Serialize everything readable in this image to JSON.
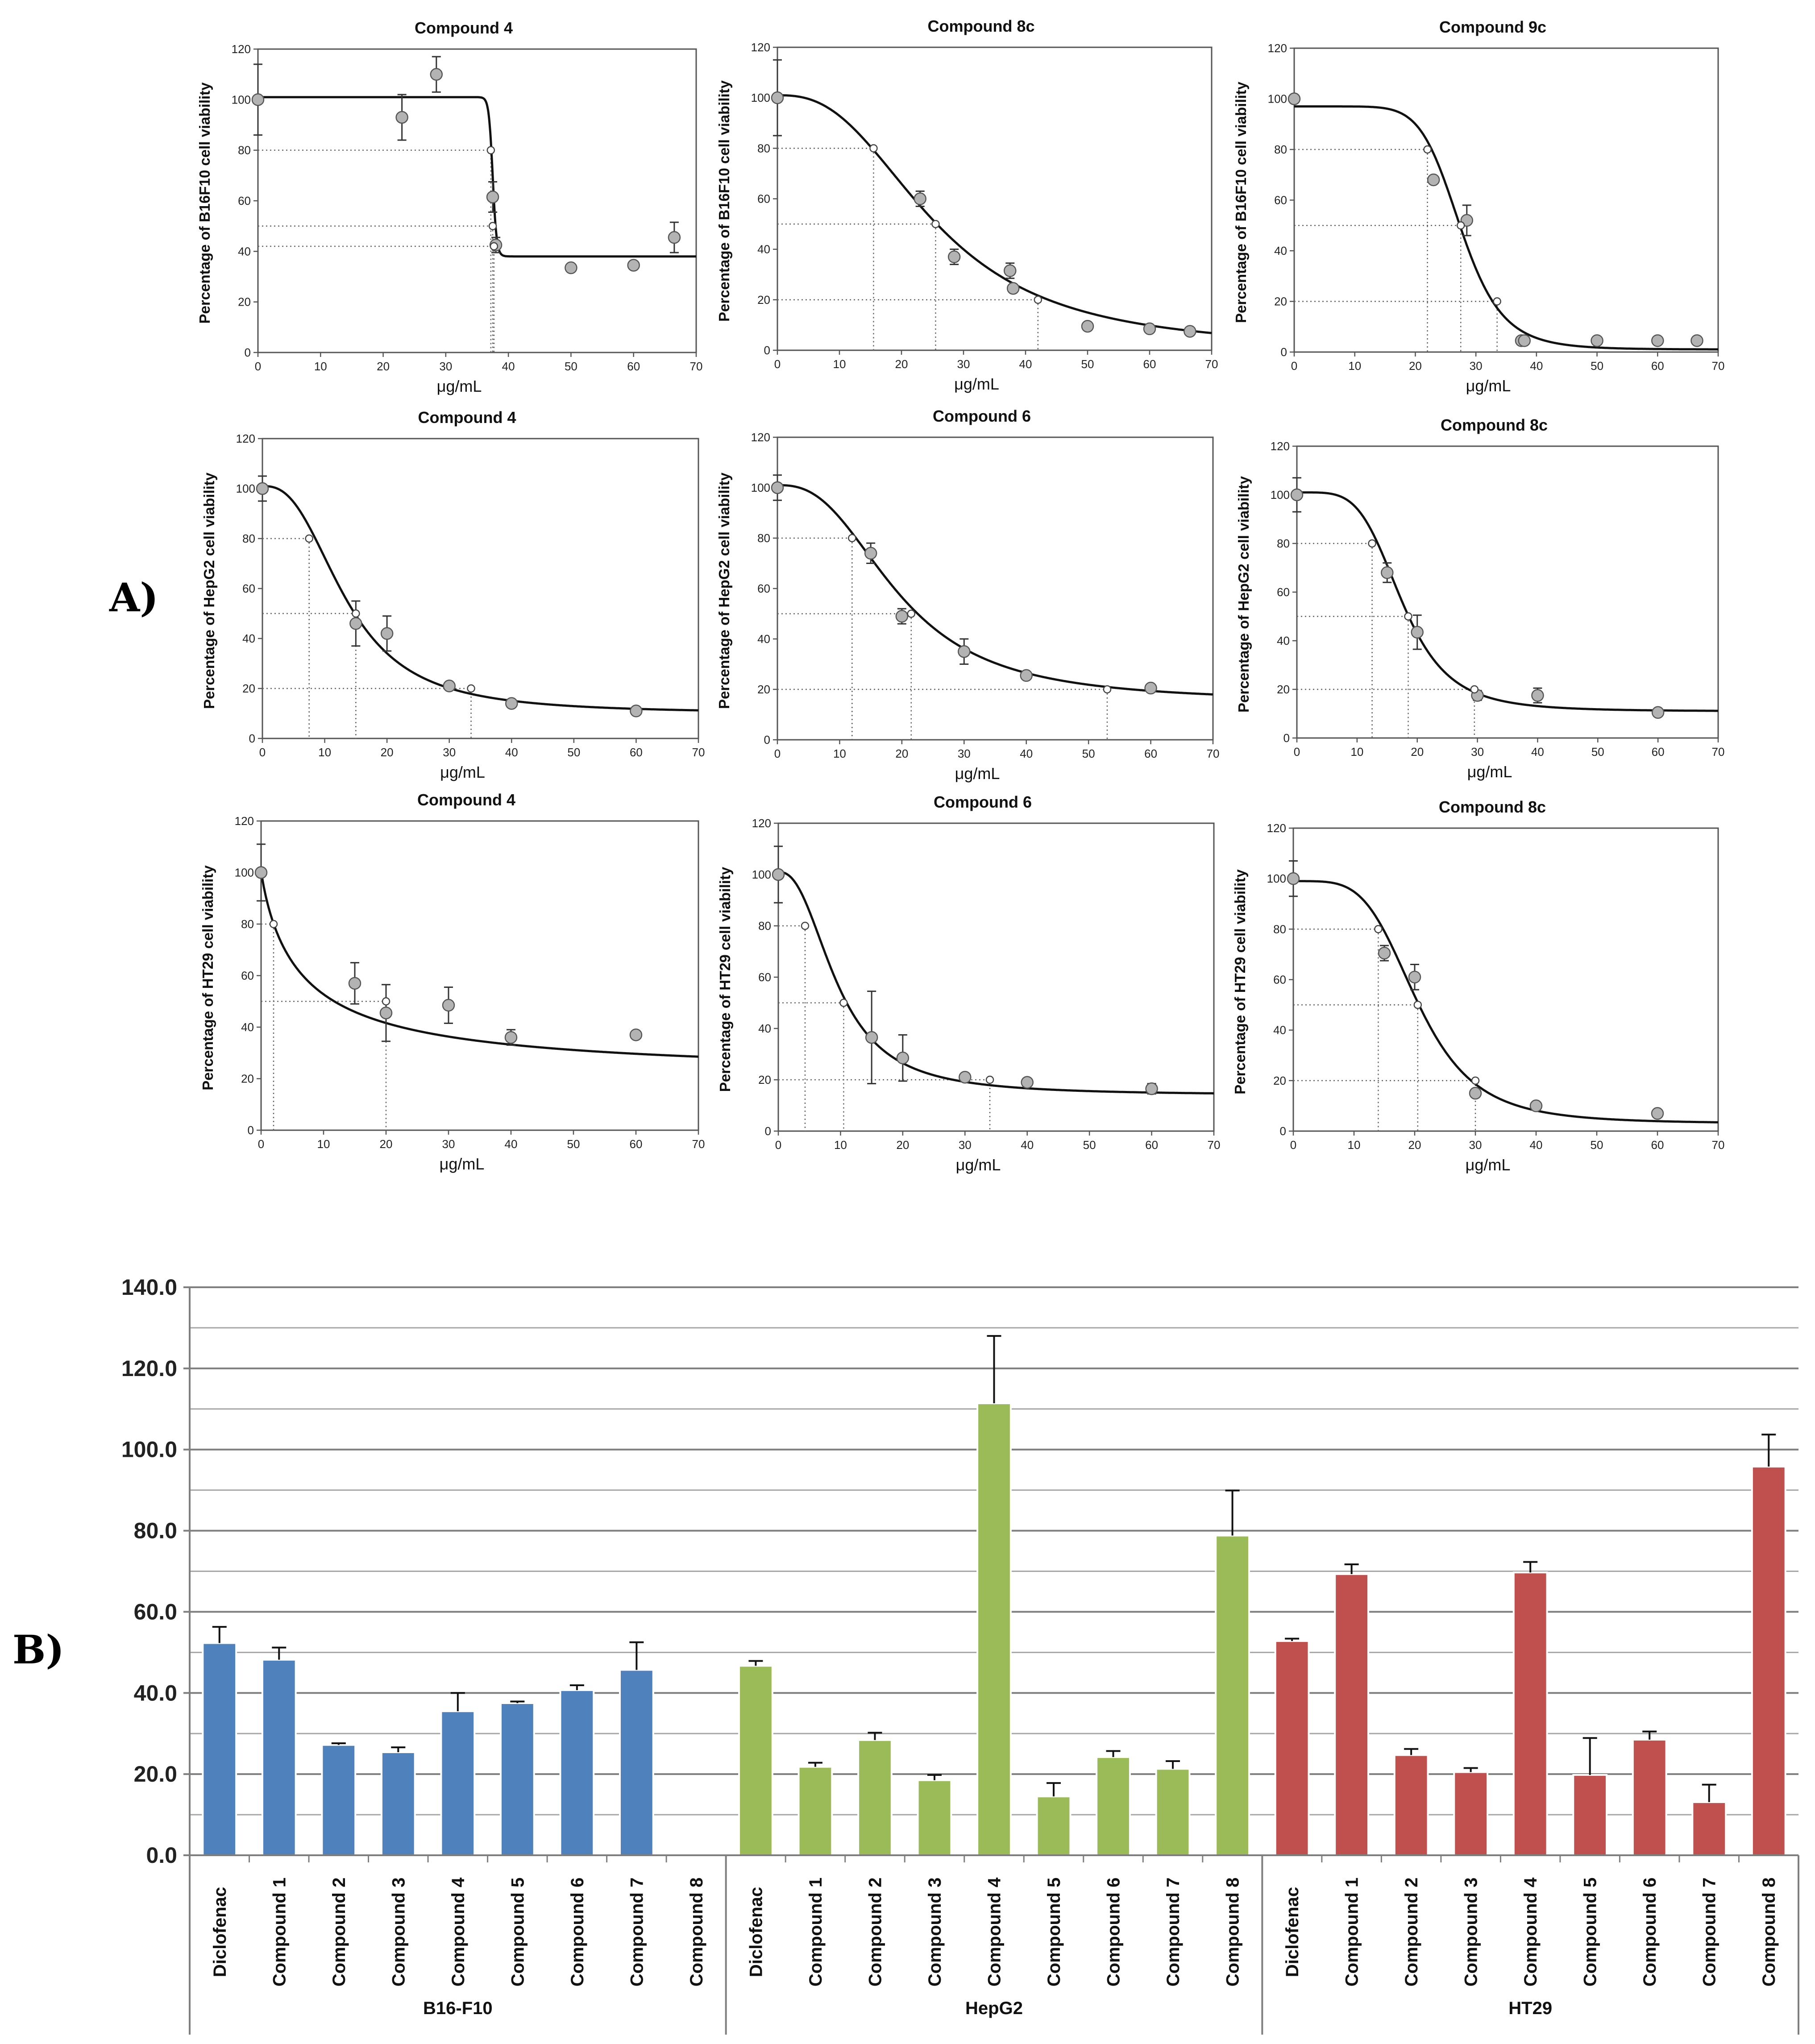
{
  "panels": {
    "a_label": "A)",
    "b_label": "B)"
  },
  "chart_data": [
    {
      "type": "scatter",
      "title": "Compound 4",
      "xlabel": "μg/mL",
      "ylabel": "Percentage of B16F10 cell viability",
      "xlim": [
        0,
        70
      ],
      "ylim": [
        0,
        120
      ],
      "xticks": [
        0,
        10,
        20,
        30,
        40,
        50,
        60,
        70
      ],
      "yticks": [
        0,
        20,
        40,
        60,
        80,
        100,
        120
      ],
      "points": [
        {
          "x": 0,
          "y": 100,
          "err": 14
        },
        {
          "x": 23,
          "y": 93,
          "err": 9
        },
        {
          "x": 28.5,
          "y": 110,
          "err": 7
        },
        {
          "x": 37.5,
          "y": 61.5,
          "err": 6
        },
        {
          "x": 38,
          "y": 42.5,
          "err": 3
        },
        {
          "x": 50,
          "y": 33.5,
          "err": 0
        },
        {
          "x": 60,
          "y": 34.5,
          "err": 0
        },
        {
          "x": 66.5,
          "y": 45.5,
          "err": 6
        }
      ],
      "fit": {
        "model": "logistic",
        "bottom": 38,
        "top": 101,
        "ec50": 37.5,
        "hill": 120
      },
      "markers": [
        {
          "x": 37.2,
          "y": 80
        },
        {
          "x": 37.5,
          "y": 50
        },
        {
          "x": 37.7,
          "y": 42
        }
      ]
    },
    {
      "type": "scatter",
      "title": "Compound 8c",
      "xlabel": "μg/mL",
      "ylabel": "Percentage of B16F10 cell viability",
      "xlim": [
        0,
        70
      ],
      "ylim": [
        0,
        120
      ],
      "xticks": [
        0,
        10,
        20,
        30,
        40,
        50,
        60,
        70
      ],
      "yticks": [
        0,
        20,
        40,
        60,
        80,
        100,
        120
      ],
      "points": [
        {
          "x": 0,
          "y": 100,
          "err": 15
        },
        {
          "x": 23,
          "y": 60,
          "err": 3
        },
        {
          "x": 28.5,
          "y": 37,
          "err": 3
        },
        {
          "x": 37.5,
          "y": 31.5,
          "err": 3
        },
        {
          "x": 38,
          "y": 24.5,
          "err": 0
        },
        {
          "x": 50,
          "y": 9.5,
          "err": 0
        },
        {
          "x": 60,
          "y": 8.5,
          "err": 0
        },
        {
          "x": 66.5,
          "y": 7.5,
          "err": 0
        }
      ],
      "fit": {
        "model": "logistic",
        "bottom": 0,
        "top": 101,
        "ec50": 25.5,
        "hill": 2.6
      },
      "markers": [
        {
          "x": 15.5,
          "y": 80
        },
        {
          "x": 25.5,
          "y": 50
        },
        {
          "x": 42,
          "y": 20
        }
      ]
    },
    {
      "type": "scatter",
      "title": "Compound 9c",
      "xlabel": "μg/mL",
      "ylabel": "Percentage of B16F10 cell viability",
      "xlim": [
        0,
        70
      ],
      "ylim": [
        0,
        120
      ],
      "xticks": [
        0,
        10,
        20,
        30,
        40,
        50,
        60,
        70
      ],
      "yticks": [
        0,
        20,
        40,
        60,
        80,
        100,
        120
      ],
      "points": [
        {
          "x": 0,
          "y": 100,
          "err": 0
        },
        {
          "x": 23,
          "y": 68,
          "err": 0
        },
        {
          "x": 28.5,
          "y": 52,
          "err": 6
        },
        {
          "x": 37.5,
          "y": 4.5,
          "err": 0
        },
        {
          "x": 38,
          "y": 4.5,
          "err": 0
        },
        {
          "x": 50,
          "y": 4.5,
          "err": 0
        },
        {
          "x": 60,
          "y": 4.5,
          "err": 0
        },
        {
          "x": 66.5,
          "y": 4.5,
          "err": 0
        }
      ],
      "fit": {
        "model": "logistic",
        "bottom": 1,
        "top": 97,
        "ec50": 27.5,
        "hill": 8
      },
      "markers": [
        {
          "x": 22,
          "y": 80
        },
        {
          "x": 27.5,
          "y": 50
        },
        {
          "x": 33.5,
          "y": 20
        }
      ]
    },
    {
      "type": "scatter",
      "title": "Compound 4",
      "xlabel": "μg/mL",
      "ylabel": "Percentage of HepG2 cell viability",
      "xlim": [
        0,
        70
      ],
      "ylim": [
        0,
        120
      ],
      "xticks": [
        0,
        10,
        20,
        30,
        40,
        50,
        60,
        70
      ],
      "yticks": [
        0,
        20,
        40,
        60,
        80,
        100,
        120
      ],
      "points": [
        {
          "x": 0,
          "y": 100,
          "err": 5
        },
        {
          "x": 15,
          "y": 46,
          "err": 9
        },
        {
          "x": 20,
          "y": 42,
          "err": 7
        },
        {
          "x": 30,
          "y": 21,
          "err": 0
        },
        {
          "x": 40,
          "y": 14,
          "err": 0
        },
        {
          "x": 60,
          "y": 11,
          "err": 0
        }
      ],
      "fit": {
        "model": "logistic",
        "bottom": 10,
        "top": 101,
        "ec50": 13.5,
        "hill": 2.6
      },
      "markers": [
        {
          "x": 7.5,
          "y": 80
        },
        {
          "x": 15,
          "y": 50
        },
        {
          "x": 33.5,
          "y": 20
        }
      ]
    },
    {
      "type": "scatter",
      "title": "Compound 6",
      "xlabel": "μg/mL",
      "ylabel": "Percentage of HepG2 cell viability",
      "xlim": [
        0,
        70
      ],
      "ylim": [
        0,
        120
      ],
      "xticks": [
        0,
        10,
        20,
        30,
        40,
        50,
        60,
        70
      ],
      "yticks": [
        0,
        20,
        40,
        60,
        80,
        100,
        120
      ],
      "points": [
        {
          "x": 0,
          "y": 100,
          "err": 5
        },
        {
          "x": 15,
          "y": 74,
          "err": 4
        },
        {
          "x": 20,
          "y": 49,
          "err": 3
        },
        {
          "x": 30,
          "y": 35,
          "err": 5
        },
        {
          "x": 40,
          "y": 25.5,
          "err": 0
        },
        {
          "x": 60,
          "y": 20.5,
          "err": 0
        }
      ],
      "fit": {
        "model": "logistic",
        "bottom": 15,
        "top": 101,
        "ec50": 19.5,
        "hill": 2.6
      },
      "markers": [
        {
          "x": 12,
          "y": 80
        },
        {
          "x": 21.5,
          "y": 50
        },
        {
          "x": 53,
          "y": 20
        }
      ]
    },
    {
      "type": "scatter",
      "title": "Compound 8c",
      "xlabel": "μg/mL",
      "ylabel": "Percentage of HepG2 cell viability",
      "xlim": [
        0,
        70
      ],
      "ylim": [
        0,
        120
      ],
      "xticks": [
        0,
        10,
        20,
        30,
        40,
        50,
        60,
        70
      ],
      "yticks": [
        0,
        20,
        40,
        60,
        80,
        100,
        120
      ],
      "points": [
        {
          "x": 0,
          "y": 100,
          "err": 7
        },
        {
          "x": 15,
          "y": 68,
          "err": 4
        },
        {
          "x": 20,
          "y": 43.5,
          "err": 7
        },
        {
          "x": 30,
          "y": 17.5,
          "err": 2
        },
        {
          "x": 40,
          "y": 17.5,
          "err": 3
        },
        {
          "x": 60,
          "y": 10.5,
          "err": 0
        }
      ],
      "fit": {
        "model": "logistic",
        "bottom": 11,
        "top": 101,
        "ec50": 17.5,
        "hill": 4.5
      },
      "markers": [
        {
          "x": 12.5,
          "y": 80
        },
        {
          "x": 18.5,
          "y": 50
        },
        {
          "x": 29.5,
          "y": 20
        }
      ]
    },
    {
      "type": "scatter",
      "title": "Compound 4",
      "xlabel": "μg/mL",
      "ylabel": "Percentage of HT29 cell viability",
      "xlim": [
        0,
        70
      ],
      "ylim": [
        0,
        120
      ],
      "xticks": [
        0,
        10,
        20,
        30,
        40,
        50,
        60,
        70
      ],
      "yticks": [
        0,
        20,
        40,
        60,
        80,
        100,
        120
      ],
      "points": [
        {
          "x": 0,
          "y": 100,
          "err": 11
        },
        {
          "x": 15,
          "y": 57,
          "err": 8
        },
        {
          "x": 20,
          "y": 45.5,
          "err": 11
        },
        {
          "x": 30,
          "y": 48.5,
          "err": 7
        },
        {
          "x": 40,
          "y": 36,
          "err": 3
        },
        {
          "x": 60,
          "y": 37,
          "err": 0
        }
      ],
      "fit": {
        "model": "logistic",
        "bottom": 20,
        "top": 101,
        "ec50": 6.5,
        "hill": 0.9
      },
      "markers": [
        {
          "x": 2,
          "y": 80
        },
        {
          "x": 20,
          "y": 50
        }
      ]
    },
    {
      "type": "scatter",
      "title": "Compound 6",
      "xlabel": "μg/mL",
      "ylabel": "Percentage of HT29 cell viability",
      "xlim": [
        0,
        70
      ],
      "ylim": [
        0,
        120
      ],
      "xticks": [
        0,
        10,
        20,
        30,
        40,
        50,
        60,
        70
      ],
      "yticks": [
        0,
        20,
        40,
        60,
        80,
        100,
        120
      ],
      "points": [
        {
          "x": 0,
          "y": 100,
          "err": 11
        },
        {
          "x": 15,
          "y": 36.5,
          "err": 18
        },
        {
          "x": 20,
          "y": 28.5,
          "err": 9
        },
        {
          "x": 30,
          "y": 21,
          "err": 0
        },
        {
          "x": 40,
          "y": 19,
          "err": 0
        },
        {
          "x": 60,
          "y": 16.5,
          "err": 2
        }
      ],
      "fit": {
        "model": "logistic",
        "bottom": 14,
        "top": 101,
        "ec50": 9.5,
        "hill": 2.4
      },
      "markers": [
        {
          "x": 4.3,
          "y": 80
        },
        {
          "x": 10.5,
          "y": 50
        },
        {
          "x": 34,
          "y": 20
        }
      ]
    },
    {
      "type": "scatter",
      "title": "Compound 8c",
      "xlabel": "μg/mL",
      "ylabel": "Percentage of HT29 cell viability",
      "xlim": [
        0,
        70
      ],
      "ylim": [
        0,
        120
      ],
      "xticks": [
        0,
        10,
        20,
        30,
        40,
        50,
        60,
        70
      ],
      "yticks": [
        0,
        20,
        40,
        60,
        80,
        100,
        120
      ],
      "points": [
        {
          "x": 0,
          "y": 100,
          "err": 7
        },
        {
          "x": 15,
          "y": 70.5,
          "err": 3
        },
        {
          "x": 20,
          "y": 61,
          "err": 5
        },
        {
          "x": 30,
          "y": 15,
          "err": 0
        },
        {
          "x": 40,
          "y": 10,
          "err": 0
        },
        {
          "x": 60,
          "y": 7,
          "err": 0
        }
      ],
      "fit": {
        "model": "logistic",
        "bottom": 3,
        "top": 99,
        "ec50": 20.5,
        "hill": 4.3
      },
      "markers": [
        {
          "x": 14,
          "y": 80
        },
        {
          "x": 20.5,
          "y": 50
        },
        {
          "x": 30,
          "y": 20
        }
      ]
    },
    {
      "type": "bar",
      "title": "",
      "ylim": [
        0,
        140
      ],
      "yticks": [
        "0.0",
        "20.0",
        "40.0",
        "60.0",
        "80.0",
        "100.0",
        "120.0",
        "140.0"
      ],
      "minor_gridlines": [
        10,
        30,
        50,
        70,
        90,
        110,
        130
      ],
      "series_colors": {
        "B16-F10": "#4f81bd",
        "HepG2": "#9bbb59",
        "HT29": "#c0504d"
      },
      "groups": [
        {
          "name": "B16-F10",
          "categories": [
            "Diclofenac",
            "Compound 1",
            "Compound 2",
            "Compound 3",
            "Compound 4",
            "Compound 5",
            "Compound 6",
            "Compound 7",
            "Compound 8"
          ],
          "values": [
            52.3,
            48.2,
            27.2,
            25.4,
            35.5,
            37.5,
            40.7,
            45.7,
            null
          ],
          "errors": [
            4.0,
            3.0,
            0.4,
            1.2,
            4.5,
            0.4,
            1.2,
            6.8,
            null
          ]
        },
        {
          "name": "HepG2",
          "categories": [
            "Diclofenac",
            "Compound 1",
            "Compound 2",
            "Compound 3",
            "Compound 4",
            "Compound 5",
            "Compound 6",
            "Compound 7",
            "Compound 8"
          ],
          "values": [
            46.7,
            21.8,
            28.4,
            18.5,
            111.4,
            14.5,
            24.2,
            21.3,
            78.8
          ],
          "errors": [
            1.2,
            1.0,
            1.8,
            1.3,
            16.6,
            3.3,
            1.5,
            1.9,
            11.1
          ]
        },
        {
          "name": "HT29",
          "categories": [
            "Diclofenac",
            "Compound 1",
            "Compound 2",
            "Compound 3",
            "Compound 4",
            "Compound 5",
            "Compound 6",
            "Compound 7",
            "Compound 8"
          ],
          "values": [
            52.8,
            69.3,
            24.7,
            20.5,
            69.7,
            19.8,
            28.5,
            13.1,
            95.8
          ],
          "errors": [
            0.6,
            2.4,
            1.5,
            1.0,
            2.6,
            9.1,
            2.0,
            4.3,
            7.9
          ]
        }
      ]
    }
  ]
}
